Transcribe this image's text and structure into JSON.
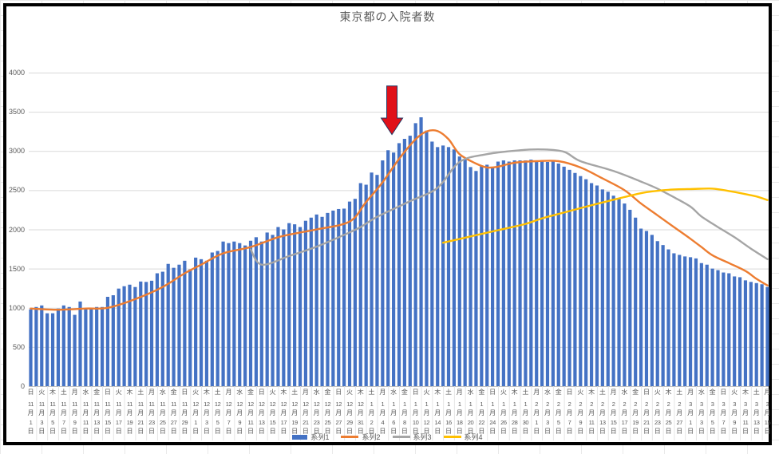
{
  "title": "東京都の入院者数",
  "label_suffix": {
    "month": "月",
    "day": "日"
  },
  "colors": {
    "bar_blue": "#4472C4",
    "line_orange": "#ED7D31",
    "line_gray": "#A5A5A5",
    "line_yellow": "#FFC000",
    "axis_text": "#595959",
    "gridline": "#D9D9D9",
    "axis_line": "#BFBFBF",
    "frame_border": "#000000",
    "arrow_red": "#E01019",
    "arrow_outline": "#203864"
  },
  "chart_data": {
    "type": "combo",
    "title": "東京都の入院者数",
    "x_start": "11月1日(日)",
    "x_end": "3月15日(月)",
    "n_points": 135,
    "ylim": [
      0,
      4000
    ],
    "y_ticks": [
      0,
      500,
      1000,
      1500,
      2000,
      2500,
      3000,
      3500,
      4000
    ],
    "grid": true,
    "legend_position": "bottom",
    "tick_labels": [
      [
        "日",
        "11",
        "1"
      ],
      [
        "火",
        "11",
        "3"
      ],
      [
        "木",
        "11",
        "5"
      ],
      [
        "土",
        "11",
        "7"
      ],
      [
        "月",
        "11",
        "9"
      ],
      [
        "水",
        "11",
        "11"
      ],
      [
        "金",
        "11",
        "13"
      ],
      [
        "日",
        "11",
        "15"
      ],
      [
        "火",
        "11",
        "17"
      ],
      [
        "木",
        "11",
        "19"
      ],
      [
        "土",
        "11",
        "21"
      ],
      [
        "月",
        "11",
        "23"
      ],
      [
        "水",
        "11",
        "25"
      ],
      [
        "金",
        "11",
        "27"
      ],
      [
        "日",
        "11",
        "29"
      ],
      [
        "火",
        "12",
        "1"
      ],
      [
        "木",
        "12",
        "3"
      ],
      [
        "土",
        "12",
        "5"
      ],
      [
        "月",
        "12",
        "7"
      ],
      [
        "水",
        "12",
        "9"
      ],
      [
        "金",
        "12",
        "11"
      ],
      [
        "日",
        "12",
        "13"
      ],
      [
        "火",
        "12",
        "15"
      ],
      [
        "木",
        "12",
        "17"
      ],
      [
        "土",
        "12",
        "19"
      ],
      [
        "月",
        "12",
        "21"
      ],
      [
        "水",
        "12",
        "23"
      ],
      [
        "金",
        "12",
        "25"
      ],
      [
        "日",
        "12",
        "27"
      ],
      [
        "火",
        "12",
        "29"
      ],
      [
        "木",
        "12",
        "31"
      ],
      [
        "土",
        "1",
        "2"
      ],
      [
        "月",
        "1",
        "4"
      ],
      [
        "水",
        "1",
        "6"
      ],
      [
        "金",
        "1",
        "8"
      ],
      [
        "日",
        "1",
        "10"
      ],
      [
        "火",
        "1",
        "12"
      ],
      [
        "木",
        "1",
        "14"
      ],
      [
        "土",
        "1",
        "16"
      ],
      [
        "月",
        "1",
        "18"
      ],
      [
        "水",
        "1",
        "20"
      ],
      [
        "金",
        "1",
        "22"
      ],
      [
        "日",
        "1",
        "24"
      ],
      [
        "火",
        "1",
        "26"
      ],
      [
        "木",
        "1",
        "28"
      ],
      [
        "土",
        "1",
        "30"
      ],
      [
        "月",
        "2",
        "1"
      ],
      [
        "水",
        "2",
        "3"
      ],
      [
        "金",
        "2",
        "5"
      ],
      [
        "日",
        "2",
        "7"
      ],
      [
        "火",
        "2",
        "9"
      ],
      [
        "木",
        "2",
        "11"
      ],
      [
        "土",
        "2",
        "13"
      ],
      [
        "月",
        "2",
        "15"
      ],
      [
        "水",
        "2",
        "17"
      ],
      [
        "金",
        "2",
        "19"
      ],
      [
        "日",
        "2",
        "21"
      ],
      [
        "火",
        "2",
        "23"
      ],
      [
        "木",
        "2",
        "25"
      ],
      [
        "土",
        "2",
        "27"
      ],
      [
        "月",
        "3",
        "1"
      ],
      [
        "水",
        "3",
        "3"
      ],
      [
        "金",
        "3",
        "5"
      ],
      [
        "日",
        "3",
        "7"
      ],
      [
        "火",
        "3",
        "9"
      ],
      [
        "木",
        "3",
        "11"
      ],
      [
        "土",
        "3",
        "13"
      ],
      [
        "月",
        "3",
        "15"
      ]
    ],
    "series": [
      {
        "name": "系列1",
        "type": "bar",
        "color": "#4472C4",
        "values": [
          980,
          1010,
          1030,
          930,
          930,
          990,
          1030,
          1010,
          910,
          1080,
          990,
          1000,
          1010,
          1010,
          1140,
          1160,
          1245,
          1275,
          1295,
          1265,
          1335,
          1330,
          1345,
          1440,
          1460,
          1560,
          1510,
          1550,
          1600,
          1490,
          1640,
          1620,
          1600,
          1705,
          1725,
          1845,
          1825,
          1845,
          1825,
          1795,
          1855,
          1900,
          1845,
          1960,
          1930,
          2030,
          2000,
          2080,
          2065,
          2030,
          2110,
          2150,
          2190,
          2160,
          2210,
          2240,
          2260,
          2265,
          2355,
          2390,
          2590,
          2570,
          2725,
          2695,
          2880,
          3010,
          2980,
          3100,
          3155,
          3195,
          3355,
          3430,
          3260,
          3120,
          3050,
          3070,
          3050,
          3020,
          2930,
          2900,
          2795,
          2745,
          2815,
          2825,
          2795,
          2865,
          2880,
          2865,
          2880,
          2880,
          2880,
          2890,
          2870,
          2880,
          2860,
          2870,
          2840,
          2800,
          2760,
          2720,
          2680,
          2640,
          2590,
          2560,
          2510,
          2480,
          2430,
          2390,
          2330,
          2250,
          2150,
          2010,
          1980,
          1930,
          1850,
          1800,
          1745,
          1695,
          1675,
          1655,
          1645,
          1630,
          1570,
          1550,
          1500,
          1480,
          1450,
          1440,
          1400,
          1390,
          1350,
          1330,
          1315,
          1300,
          1265
        ]
      },
      {
        "name": "系列2",
        "type": "line",
        "color": "#ED7D31",
        "points": [
          [
            0,
            990
          ],
          [
            5,
            975
          ],
          [
            10,
            990
          ],
          [
            14,
            1000
          ],
          [
            19,
            1110
          ],
          [
            24,
            1265
          ],
          [
            28,
            1440
          ],
          [
            31,
            1550
          ],
          [
            35,
            1695
          ],
          [
            40,
            1775
          ],
          [
            45,
            1900
          ],
          [
            49,
            1960
          ],
          [
            52,
            2000
          ],
          [
            58,
            2100
          ],
          [
            61,
            2350
          ],
          [
            64,
            2600
          ],
          [
            67,
            2900
          ],
          [
            70,
            3150
          ],
          [
            72,
            3250
          ],
          [
            74,
            3255
          ],
          [
            76,
            3150
          ],
          [
            78,
            2960
          ],
          [
            81,
            2840
          ],
          [
            83,
            2790
          ],
          [
            85,
            2800
          ],
          [
            88,
            2850
          ],
          [
            92,
            2870
          ],
          [
            96,
            2870
          ],
          [
            100,
            2790
          ],
          [
            104,
            2650
          ],
          [
            108,
            2500
          ],
          [
            111,
            2330
          ],
          [
            114,
            2180
          ],
          [
            117,
            2030
          ],
          [
            120,
            1880
          ],
          [
            122,
            1775
          ],
          [
            124,
            1670
          ],
          [
            127,
            1570
          ],
          [
            130,
            1470
          ],
          [
            132,
            1370
          ],
          [
            134,
            1285
          ]
        ]
      },
      {
        "name": "系列3",
        "type": "line",
        "color": "#A5A5A5",
        "points": [
          [
            40,
            1745
          ],
          [
            42,
            1550
          ],
          [
            47,
            1660
          ],
          [
            52,
            1780
          ],
          [
            57,
            1930
          ],
          [
            60,
            2030
          ],
          [
            63,
            2160
          ],
          [
            69,
            2360
          ],
          [
            74,
            2530
          ],
          [
            78,
            2860
          ],
          [
            83,
            2960
          ],
          [
            89,
            3010
          ],
          [
            93,
            3020
          ],
          [
            97,
            2990
          ],
          [
            100,
            2870
          ],
          [
            106,
            2745
          ],
          [
            111,
            2610
          ],
          [
            114,
            2520
          ],
          [
            117,
            2410
          ],
          [
            120,
            2290
          ],
          [
            122,
            2165
          ],
          [
            125,
            2030
          ],
          [
            128,
            1900
          ],
          [
            131,
            1755
          ],
          [
            134,
            1620
          ]
        ]
      },
      {
        "name": "系列4",
        "type": "line",
        "color": "#FFC000",
        "points": [
          [
            75,
            1830
          ],
          [
            80,
            1910
          ],
          [
            85,
            1990
          ],
          [
            90,
            2070
          ],
          [
            93,
            2140
          ],
          [
            97,
            2215
          ],
          [
            101,
            2290
          ],
          [
            105,
            2360
          ],
          [
            109,
            2430
          ],
          [
            112,
            2475
          ],
          [
            116,
            2505
          ],
          [
            120,
            2515
          ],
          [
            124,
            2520
          ],
          [
            127,
            2490
          ],
          [
            130,
            2450
          ],
          [
            132,
            2420
          ],
          [
            134,
            2375
          ]
        ]
      }
    ],
    "annotation": {
      "shape": "down-arrow",
      "fill": "#E01019",
      "outline": "#203864",
      "x_index": 65.7,
      "value_top": 3830,
      "value_head": 3420,
      "value_tip": 3210
    }
  }
}
